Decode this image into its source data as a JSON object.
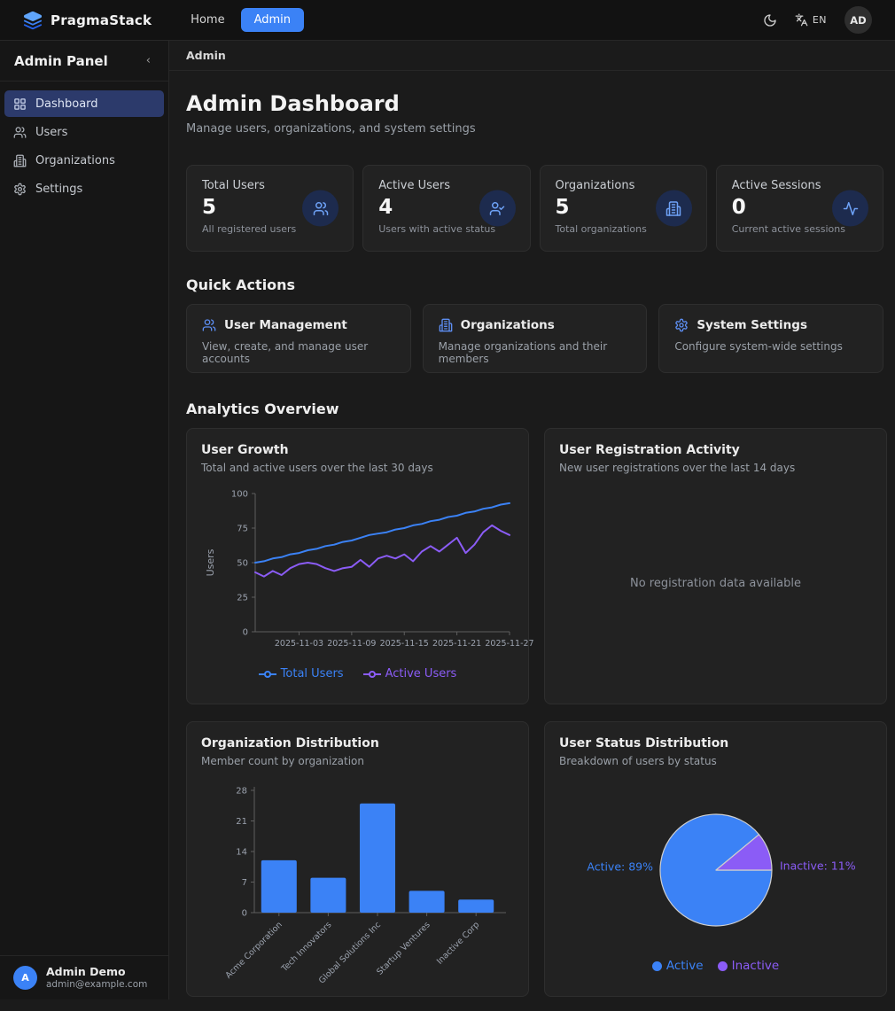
{
  "brand": {
    "name": "PragmaStack"
  },
  "navbar": {
    "links": [
      {
        "label": "Home",
        "active": false
      },
      {
        "label": "Admin",
        "active": true
      }
    ],
    "lang": "EN",
    "avatar": "AD"
  },
  "sidebar": {
    "title": "Admin Panel",
    "collapse_glyph": "‹",
    "items": [
      {
        "label": "Dashboard",
        "active": true
      },
      {
        "label": "Users",
        "active": false
      },
      {
        "label": "Organizations",
        "active": false
      },
      {
        "label": "Settings",
        "active": false
      }
    ],
    "user": {
      "initial": "A",
      "name": "Admin Demo",
      "email": "admin@example.com"
    }
  },
  "breadcrumb": "Admin",
  "header": {
    "title": "Admin Dashboard",
    "subtitle": "Manage users, organizations, and system settings"
  },
  "stats": [
    {
      "label": "Total Users",
      "value": "5",
      "caption": "All registered users",
      "icon": "users-icon"
    },
    {
      "label": "Active Users",
      "value": "4",
      "caption": "Users with active status",
      "icon": "user-check-icon"
    },
    {
      "label": "Organizations",
      "value": "5",
      "caption": "Total organizations",
      "icon": "building-icon"
    },
    {
      "label": "Active Sessions",
      "value": "0",
      "caption": "Current active sessions",
      "icon": "activity-icon"
    }
  ],
  "quick_actions": {
    "heading": "Quick Actions",
    "cards": [
      {
        "title": "User Management",
        "caption": "View, create, and manage user accounts",
        "icon": "users-icon"
      },
      {
        "title": "Organizations",
        "caption": "Manage organizations and their members",
        "icon": "building-icon"
      },
      {
        "title": "System Settings",
        "caption": "Configure system-wide settings",
        "icon": "gear-icon"
      }
    ]
  },
  "analytics": {
    "heading": "Analytics Overview",
    "user_growth": {
      "title": "User Growth",
      "subtitle": "Total and active users over the last 30 days"
    },
    "registration": {
      "title": "User Registration Activity",
      "subtitle": "New user registrations over the last 14 days",
      "empty": "No registration data available"
    },
    "org_distribution": {
      "title": "Organization Distribution",
      "subtitle": "Member count by organization"
    },
    "status_distribution": {
      "title": "User Status Distribution",
      "subtitle": "Breakdown of users by status"
    }
  },
  "colors": {
    "accent_blue": "#3b82f6",
    "accent_purple": "#8b5cf6",
    "axis": "#5f5f5f",
    "tick_text": "#9ca3af"
  },
  "chart_data": [
    {
      "id": "user_growth",
      "type": "line",
      "title": "User Growth",
      "ylabel": "Users",
      "ylim": [
        0,
        100
      ],
      "yticks": [
        0,
        25,
        50,
        75,
        100
      ],
      "xtick_labels": [
        "2025-11-03",
        "2025-11-09",
        "2025-11-15",
        "2025-11-21",
        "2025-11-27"
      ],
      "x": [
        "2025-10-29",
        "2025-10-30",
        "2025-10-31",
        "2025-11-01",
        "2025-11-02",
        "2025-11-03",
        "2025-11-04",
        "2025-11-05",
        "2025-11-06",
        "2025-11-07",
        "2025-11-08",
        "2025-11-09",
        "2025-11-10",
        "2025-11-11",
        "2025-11-12",
        "2025-11-13",
        "2025-11-14",
        "2025-11-15",
        "2025-11-16",
        "2025-11-17",
        "2025-11-18",
        "2025-11-19",
        "2025-11-20",
        "2025-11-21",
        "2025-11-22",
        "2025-11-23",
        "2025-11-24",
        "2025-11-25",
        "2025-11-26",
        "2025-11-27"
      ],
      "series": [
        {
          "name": "Total Users",
          "color": "#3b82f6",
          "values": [
            50,
            51,
            53,
            54,
            56,
            57,
            59,
            60,
            62,
            63,
            65,
            66,
            68,
            70,
            71,
            72,
            74,
            75,
            77,
            78,
            80,
            81,
            83,
            84,
            86,
            87,
            89,
            90,
            92,
            93
          ]
        },
        {
          "name": "Active Users",
          "color": "#8b5cf6",
          "values": [
            43,
            40,
            44,
            41,
            46,
            49,
            50,
            49,
            46,
            44,
            46,
            47,
            52,
            47,
            53,
            55,
            53,
            56,
            51,
            58,
            62,
            58,
            63,
            68,
            57,
            63,
            72,
            77,
            73,
            70
          ]
        }
      ],
      "legend_position": "bottom",
      "grid": false
    },
    {
      "id": "org_distribution",
      "type": "bar",
      "title": "Organization Distribution",
      "categories": [
        "Acme Corporation",
        "Tech Innovators",
        "Global Solutions Inc",
        "Startup Ventures",
        "Inactive Corp"
      ],
      "values": [
        12,
        8,
        25,
        5,
        3
      ],
      "ylim": [
        0,
        28
      ],
      "yticks": [
        0,
        7,
        14,
        21,
        28
      ],
      "bar_color": "#3b82f6",
      "grid": false
    },
    {
      "id": "status_distribution",
      "type": "pie",
      "title": "User Status Distribution",
      "slices": [
        {
          "label": "Active",
          "pct": 89,
          "color": "#3b82f6",
          "callout": "Active: 89%"
        },
        {
          "label": "Inactive",
          "pct": 11,
          "color": "#8b5cf6",
          "callout": "Inactive: 11%"
        }
      ],
      "legend_position": "bottom"
    }
  ]
}
